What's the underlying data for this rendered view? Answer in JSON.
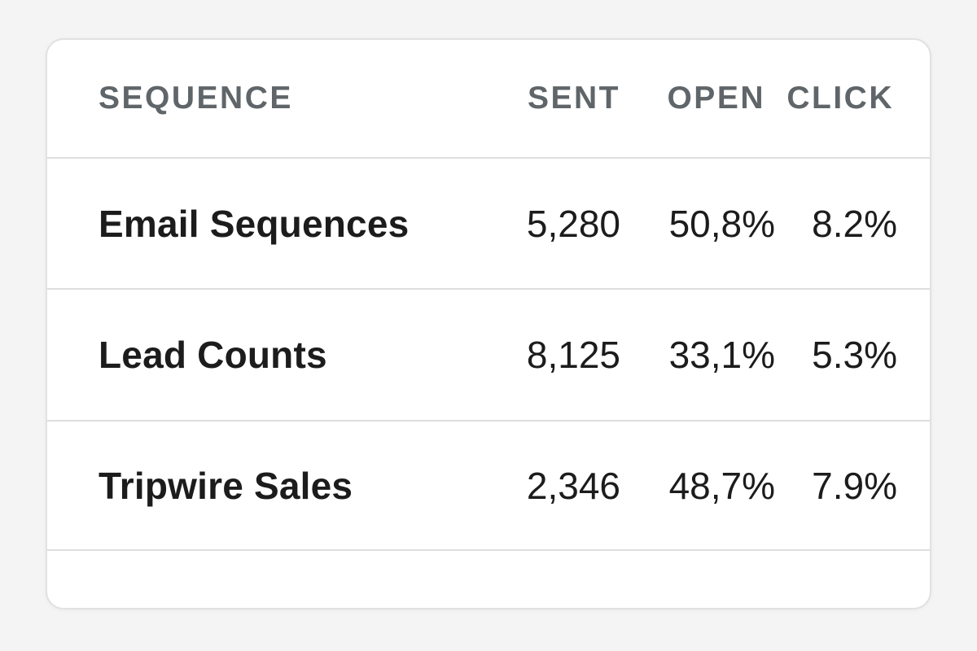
{
  "table": {
    "headers": {
      "sequence": "SEQUENCE",
      "sent": "SENT",
      "open": "OPEN",
      "click": "CLICK"
    },
    "rows": [
      {
        "sequence": "Email Sequences",
        "sent": "5,280",
        "open": "50,8%",
        "click": "8.2%"
      },
      {
        "sequence": "Lead Counts",
        "sent": "8,125",
        "open": "33,1%",
        "click": "5.3%"
      },
      {
        "sequence": "Tripwire Sales",
        "sent": "2,346",
        "open": "48,7%",
        "click": "7.9%"
      }
    ]
  },
  "colors": {
    "background": "#f4f4f4",
    "card": "#ffffff",
    "border": "#e1e1e1",
    "header_text": "#5f6569",
    "body_text": "#1c1c1c"
  }
}
